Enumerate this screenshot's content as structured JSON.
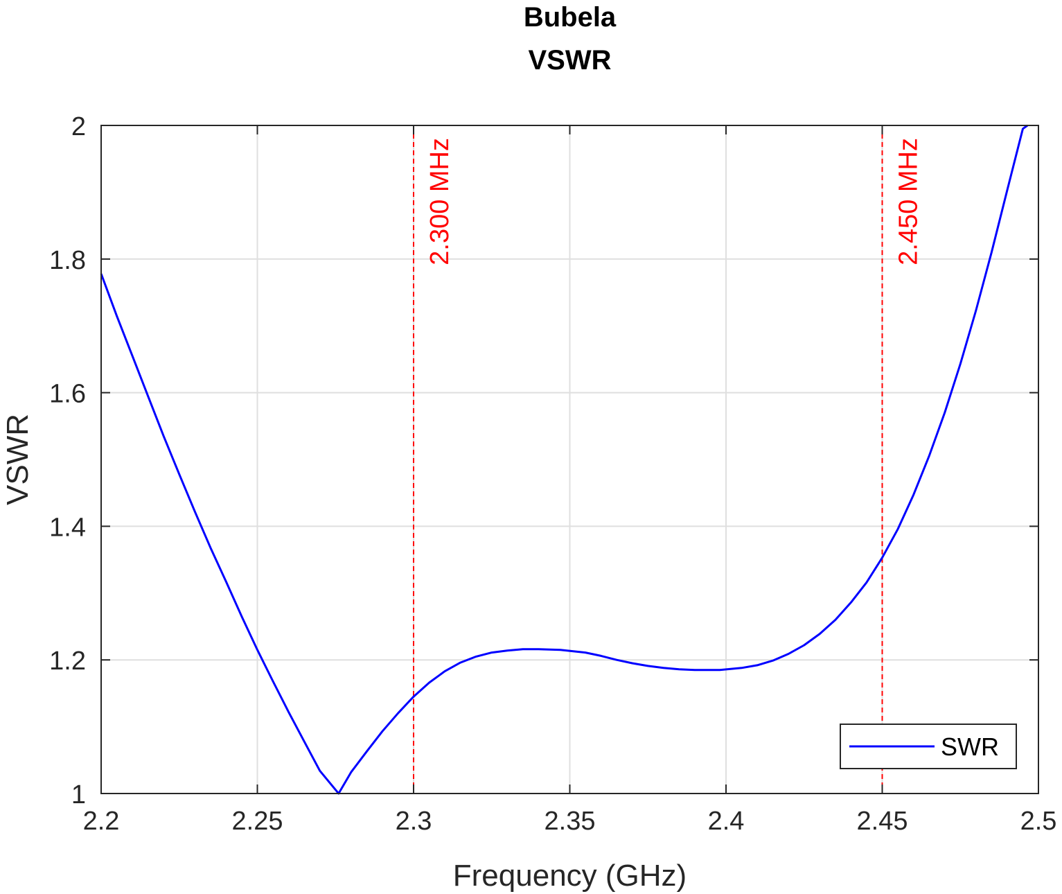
{
  "chart_data": {
    "type": "line",
    "title": [
      "Bubela",
      "VSWR"
    ],
    "xlabel": "Frequency (GHz)",
    "ylabel": "VSWR",
    "xlim": [
      2.2,
      2.5
    ],
    "ylim": [
      1,
      2
    ],
    "xticks": [
      2.2,
      2.25,
      2.3,
      2.35,
      2.4,
      2.45,
      2.5
    ],
    "xtick_labels": [
      "2.2",
      "2.25",
      "2.3",
      "2.35",
      "2.4",
      "2.45",
      "2.5"
    ],
    "yticks": [
      1,
      1.2,
      1.4,
      1.6,
      1.8,
      2
    ],
    "ytick_labels": [
      "1",
      "1.2",
      "1.4",
      "1.6",
      "1.8",
      "2"
    ],
    "grid": true,
    "legend": {
      "placement": "bottom-right",
      "entries": [
        "SWR"
      ]
    },
    "series": [
      {
        "name": "SWR",
        "color": "#0000ff",
        "x": [
          2.2,
          2.205,
          2.21,
          2.215,
          2.22,
          2.225,
          2.23,
          2.235,
          2.24,
          2.245,
          2.25,
          2.255,
          2.26,
          2.265,
          2.27,
          2.276,
          2.28,
          2.285,
          2.29,
          2.295,
          2.3,
          2.305,
          2.31,
          2.315,
          2.32,
          2.325,
          2.33,
          2.335,
          2.34,
          2.347,
          2.355,
          2.36,
          2.365,
          2.37,
          2.375,
          2.38,
          2.385,
          2.39,
          2.398,
          2.405,
          2.41,
          2.415,
          2.42,
          2.425,
          2.43,
          2.435,
          2.44,
          2.445,
          2.45,
          2.455,
          2.46,
          2.465,
          2.47,
          2.475,
          2.48,
          2.485,
          2.49,
          2.495,
          2.4965
        ],
        "y": [
          1.778,
          1.715,
          1.655,
          1.595,
          1.535,
          1.478,
          1.422,
          1.368,
          1.317,
          1.265,
          1.215,
          1.168,
          1.122,
          1.078,
          1.034,
          1.0,
          1.032,
          1.063,
          1.093,
          1.12,
          1.145,
          1.166,
          1.183,
          1.196,
          1.205,
          1.211,
          1.214,
          1.216,
          1.216,
          1.215,
          1.211,
          1.206,
          1.2,
          1.195,
          1.191,
          1.188,
          1.186,
          1.185,
          1.185,
          1.188,
          1.192,
          1.199,
          1.209,
          1.222,
          1.239,
          1.26,
          1.286,
          1.316,
          1.353,
          1.396,
          1.447,
          1.505,
          1.57,
          1.643,
          1.723,
          1.81,
          1.903,
          1.995,
          2.0
        ]
      }
    ],
    "markers": [
      {
        "x": 2.3,
        "label": "2.300 MHz",
        "color": "#ff0000"
      },
      {
        "x": 2.45,
        "label": "2.450 MHz",
        "color": "#ff0000"
      }
    ]
  }
}
